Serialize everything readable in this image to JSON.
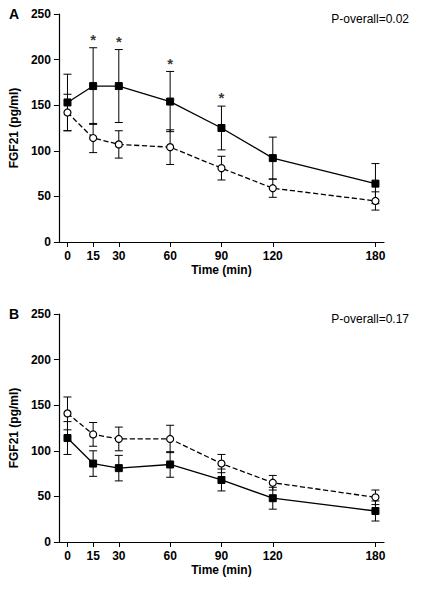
{
  "chart_data": [
    {
      "type": "line",
      "title": "A",
      "subtitle": "P-overall=0.02",
      "x_label": "Time (min)",
      "y_label": "FGF21 (pg/ml)",
      "x": [
        0,
        15,
        30,
        60,
        90,
        120,
        180
      ],
      "xlim": [
        -5,
        185
      ],
      "xticks": [
        0,
        15,
        30,
        60,
        90,
        120,
        180
      ],
      "ylim": [
        0,
        250
      ],
      "yticks": [
        0,
        50,
        100,
        150,
        200,
        250
      ],
      "grid": false,
      "series": [
        {
          "color": "#000000",
          "marker": "square",
          "line_style": "solid",
          "values": [
            153,
            171,
            171,
            154,
            125,
            92,
            64
          ],
          "errors": [
            31,
            42,
            40,
            33,
            24,
            23,
            22
          ]
        },
        {
          "color": "#000000",
          "marker": "open_circle",
          "line_style": "dashed",
          "values": [
            142,
            114,
            107,
            104,
            81,
            59,
            45
          ],
          "errors": [
            20,
            16,
            15,
            19,
            13,
            10,
            10
          ]
        }
      ],
      "annotations": [
        {
          "text": "*",
          "x": 15,
          "y": 222
        },
        {
          "text": "*",
          "x": 30,
          "y": 220
        },
        {
          "text": "*",
          "x": 60,
          "y": 196
        },
        {
          "text": "*",
          "x": 90,
          "y": 158
        }
      ]
    },
    {
      "type": "line",
      "title": "B",
      "subtitle": "P-overall=0.17",
      "x_label": "Time (min)",
      "y_label": "FGF21 (pg/ml)",
      "x": [
        0,
        15,
        30,
        60,
        90,
        120,
        180
      ],
      "xlim": [
        -5,
        185
      ],
      "xticks": [
        0,
        15,
        30,
        60,
        90,
        120,
        180
      ],
      "ylim": [
        0,
        250
      ],
      "yticks": [
        0,
        50,
        100,
        150,
        200,
        250
      ],
      "grid": false,
      "series": [
        {
          "color": "#000000",
          "marker": "square",
          "line_style": "solid",
          "values": [
            114,
            86,
            81,
            85,
            68,
            48,
            34
          ],
          "errors": [
            18,
            14,
            14,
            14,
            12,
            12,
            11
          ]
        },
        {
          "color": "#000000",
          "marker": "open_circle",
          "line_style": "dashed",
          "values": [
            141,
            118,
            113,
            113,
            86,
            65,
            49
          ],
          "errors": [
            18,
            13,
            13,
            15,
            10,
            8,
            8
          ]
        }
      ],
      "annotations": []
    }
  ]
}
